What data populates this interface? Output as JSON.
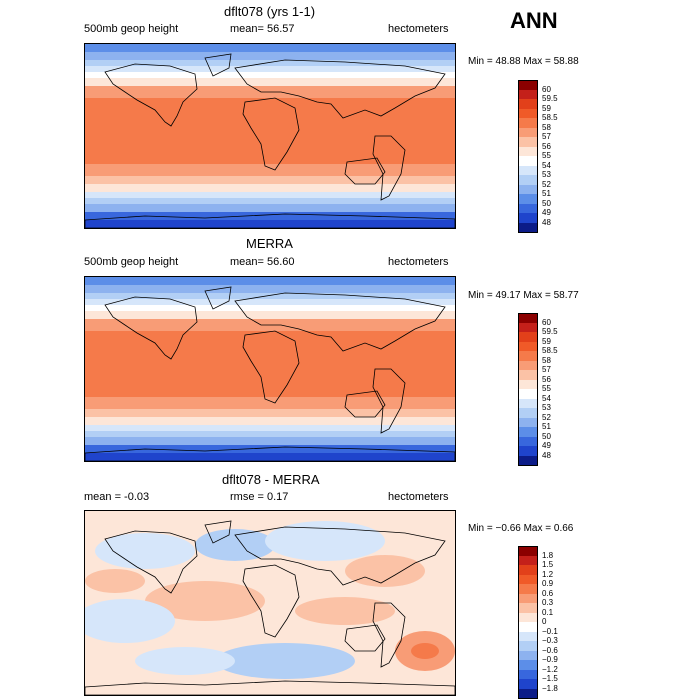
{
  "season": "ANN",
  "panels": [
    {
      "title": "dflt078 (yrs 1-1)",
      "left_label": "500mb geop height",
      "mid_label": "mean=   56.57",
      "right_label": "hectometers",
      "minmax": "Min =   48.88 Max =   58.88",
      "colorbar": {
        "labels": [
          "60",
          "59.5",
          "59",
          "58.5",
          "58",
          "57",
          "56",
          "55",
          "54",
          "53",
          "52",
          "51",
          "50",
          "49",
          "48"
        ],
        "colors": [
          "#8b0000",
          "#c4201a",
          "#e2401a",
          "#f05a28",
          "#f57a4a",
          "#f89c76",
          "#fbc2a6",
          "#fde6d8",
          "#ffffff",
          "#d6e6fa",
          "#b2cff5",
          "#8db2ef",
          "#5c8ee8",
          "#3867dd",
          "#1f44cc",
          "#0c1c88"
        ]
      },
      "field": "height"
    },
    {
      "title": "MERRA",
      "left_label": "500mb geop height",
      "mid_label": "mean=   56.60",
      "right_label": "hectometers",
      "minmax": "Min =   49.17 Max =   58.77",
      "colorbar": {
        "labels": [
          "60",
          "59.5",
          "59",
          "58.5",
          "58",
          "57",
          "56",
          "55",
          "54",
          "53",
          "52",
          "51",
          "50",
          "49",
          "48"
        ],
        "colors": [
          "#8b0000",
          "#c4201a",
          "#e2401a",
          "#f05a28",
          "#f57a4a",
          "#f89c76",
          "#fbc2a6",
          "#fde6d8",
          "#ffffff",
          "#d6e6fa",
          "#b2cff5",
          "#8db2ef",
          "#5c8ee8",
          "#3867dd",
          "#1f44cc",
          "#0c1c88"
        ]
      },
      "field": "height"
    },
    {
      "title": "dflt078 - MERRA",
      "left_label": "mean =   -0.03",
      "mid_label": "rmse =    0.17",
      "right_label": "hectometers",
      "minmax": "Min =  −0.66 Max =    0.66",
      "colorbar": {
        "labels": [
          "1.8",
          "1.5",
          "1.2",
          "0.9",
          "0.6",
          "0.3",
          "0.1",
          "0",
          "−0.1",
          "−0.3",
          "−0.6",
          "−0.9",
          "−1.2",
          "−1.5",
          "−1.8"
        ],
        "colors": [
          "#8b0000",
          "#c4201a",
          "#e2401a",
          "#f05a28",
          "#f57a4a",
          "#f89c76",
          "#fbc2a6",
          "#fde6d8",
          "#ffffff",
          "#d6e6fa",
          "#b2cff5",
          "#8db2ef",
          "#5c8ee8",
          "#3867dd",
          "#1f44cc",
          "#0c1c88"
        ]
      },
      "field": "diff"
    }
  ],
  "chart_data": [
    {
      "type": "heatmap",
      "title": "dflt078 (yrs 1-1)",
      "variable": "500mb geop height",
      "units": "hectometers",
      "mean": 56.57,
      "min": 48.88,
      "max": 58.88,
      "levels": [
        48,
        49,
        50,
        51,
        52,
        53,
        54,
        55,
        56,
        57,
        58,
        58.5,
        59,
        59.5,
        60
      ]
    },
    {
      "type": "heatmap",
      "title": "MERRA",
      "variable": "500mb geop height",
      "units": "hectometers",
      "mean": 56.6,
      "min": 49.17,
      "max": 58.77,
      "levels": [
        48,
        49,
        50,
        51,
        52,
        53,
        54,
        55,
        56,
        57,
        58,
        58.5,
        59,
        59.5,
        60
      ]
    },
    {
      "type": "heatmap",
      "title": "dflt078 - MERRA",
      "units": "hectometers",
      "mean": -0.03,
      "rmse": 0.17,
      "min": -0.66,
      "max": 0.66,
      "levels": [
        -1.8,
        -1.5,
        -1.2,
        -0.9,
        -0.6,
        -0.3,
        -0.1,
        0,
        0.1,
        0.3,
        0.6,
        0.9,
        1.2,
        1.5,
        1.8
      ]
    }
  ]
}
